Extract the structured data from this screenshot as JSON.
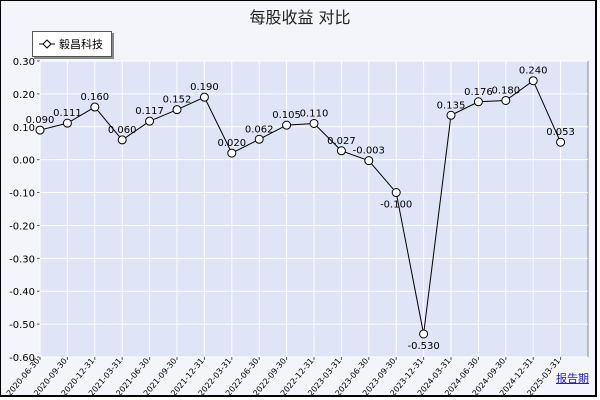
{
  "chart_data": {
    "type": "line",
    "title": "每股收益  对比",
    "xlabel": "",
    "ylabel": "",
    "ylim": [
      -0.6,
      0.3
    ],
    "yticks": [
      "0.30",
      "0.20",
      "0.10",
      "0.00",
      "-0.10",
      "-0.20",
      "-0.30",
      "-0.40",
      "-0.50",
      "-0.60"
    ],
    "grid": true,
    "legend_position": "top-left",
    "categories": [
      "2020-06-30",
      "2020-09-30",
      "2020-12-31",
      "2021-03-31",
      "2021-06-30",
      "2021-09-30",
      "2021-12-31",
      "2022-03-31",
      "2022-06-30",
      "2022-09-30",
      "2022-12-31",
      "2023-03-31",
      "2023-06-30",
      "2023-09-30",
      "2023-12-31",
      "2024-03-31",
      "2024-06-30",
      "2024-09-30",
      "2024-12-31",
      "2025-03-31"
    ],
    "series": [
      {
        "name": "毅昌科技",
        "values": [
          0.09,
          0.111,
          0.16,
          0.06,
          0.117,
          0.152,
          0.19,
          0.02,
          0.062,
          0.105,
          0.11,
          0.027,
          -0.003,
          -0.1,
          -0.53,
          0.135,
          0.176,
          0.18,
          0.24,
          0.053
        ],
        "labels": [
          "0.090",
          "0.111",
          "0.160",
          "0.060",
          "0.117",
          "0.152",
          "0.190",
          "0.020",
          "0.062",
          "0.105",
          "0.110",
          "0.027",
          "-0.003",
          "-0.100",
          "-0.530",
          "0.135",
          "0.176",
          "0.180",
          "0.240",
          "0.053"
        ]
      }
    ]
  },
  "colors": {
    "plot_background": "#dfe4f7",
    "grid": "#ffffff",
    "line": "#000000",
    "marker_fill": "#ffffff"
  },
  "period_link": "报告期"
}
